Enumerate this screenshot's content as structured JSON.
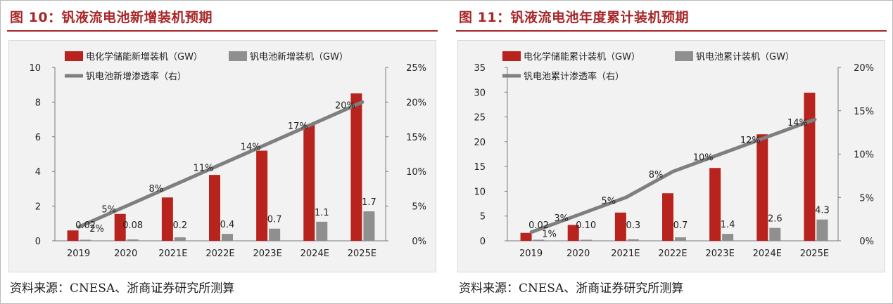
{
  "colors": {
    "title": "#a72628",
    "bar_primary": "#b8231d",
    "bar_secondary": "#8f8f8f",
    "line": "#7f7f7f",
    "rule": "#a72628"
  },
  "charts": [
    {
      "title": "图 10：钒液流电池新增装机预期",
      "source": "资料来源：CNESA、浙商证券研究所测算"
    },
    {
      "title": "图 11：钒液流电池年度累计装机预期",
      "source": "资料来源：CNESA、浙商证券研究所测算"
    }
  ],
  "chart_data": [
    {
      "type": "bar",
      "title": "图 10：钒液流电池新增装机预期",
      "categories": [
        "2019",
        "2020",
        "2021E",
        "2022E",
        "2023E",
        "2024E",
        "2025E"
      ],
      "series": [
        {
          "name": "电化学储能新增装机（GW）",
          "kind": "bar",
          "axis": "left",
          "values": [
            0.6,
            1.55,
            2.5,
            3.8,
            5.2,
            6.7,
            8.5
          ],
          "labels": []
        },
        {
          "name": "钒电池新增装机（GW）",
          "kind": "bar",
          "axis": "left",
          "values": [
            0.02,
            0.08,
            0.2,
            0.4,
            0.7,
            1.1,
            1.7
          ],
          "labels": [
            "0.02",
            "0.08",
            "0.2",
            "0.4",
            "0.7",
            "1.1",
            "1.7"
          ]
        },
        {
          "name": "钒电池新增渗透率（右）",
          "kind": "line",
          "axis": "right",
          "values": [
            2,
            5,
            8,
            11,
            14,
            17,
            20
          ],
          "labels": [
            "2%",
            "5%",
            "8%",
            "11%",
            "14%",
            "17%",
            "20%"
          ]
        }
      ],
      "ylim_left": [
        0,
        10
      ],
      "yticks_left": [
        "0",
        "2",
        "4",
        "6",
        "8",
        "10"
      ],
      "ylim_right": [
        0,
        25
      ],
      "yticks_right": [
        "0%",
        "5%",
        "10%",
        "15%",
        "20%",
        "25%"
      ]
    },
    {
      "type": "bar",
      "title": "图 11：钒液流电池年度累计装机预期",
      "categories": [
        "2019",
        "2020",
        "2021E",
        "2022E",
        "2023E",
        "2024E",
        "2025E"
      ],
      "series": [
        {
          "name": "电化学储能累计装机（GW）",
          "kind": "bar",
          "axis": "left",
          "values": [
            1.6,
            3.2,
            5.7,
            9.6,
            14.7,
            21.5,
            29.9
          ],
          "labels": []
        },
        {
          "name": "钒电池累计装机（GW）",
          "kind": "bar",
          "axis": "left",
          "values": [
            0.02,
            0.1,
            0.3,
            0.7,
            1.4,
            2.6,
            4.3
          ],
          "labels": [
            "0.02",
            "0.10",
            "0.3",
            "0.7",
            "1.4",
            "2.6",
            "4.3"
          ]
        },
        {
          "name": "钒电池累计渗透率（右）",
          "kind": "line",
          "axis": "right",
          "values": [
            1,
            3,
            5,
            8,
            10,
            12,
            14
          ],
          "labels": [
            "1%",
            "3%",
            "5%",
            "8%",
            "10%",
            "12%",
            "14%"
          ]
        }
      ],
      "ylim_left": [
        0,
        35
      ],
      "yticks_left": [
        "0",
        "5",
        "10",
        "15",
        "20",
        "25",
        "30",
        "35"
      ],
      "ylim_right": [
        0,
        20
      ],
      "yticks_right": [
        "0%",
        "5%",
        "10%",
        "15%",
        "20%"
      ]
    }
  ]
}
